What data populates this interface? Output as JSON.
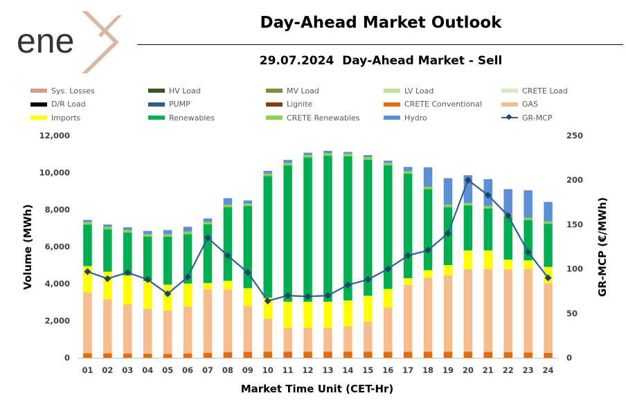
{
  "logo": {
    "text": "ene",
    "accent_color": "#d9b8a4",
    "text_color": "#333333"
  },
  "header": {
    "title": "Day-Ahead Market Outlook",
    "subtitle": "29.07.2024  Day-Ahead Market - Sell"
  },
  "legend": [
    {
      "label": "Sys. Losses",
      "color": "#d9998f",
      "kind": "bar"
    },
    {
      "label": "HV Load",
      "color": "#375623",
      "kind": "bar"
    },
    {
      "label": "MV Load",
      "color": "#76923c",
      "kind": "bar"
    },
    {
      "label": "LV Load",
      "color": "#c4df9b",
      "kind": "bar"
    },
    {
      "label": "CRETE Load",
      "color": "#d8e9c6",
      "kind": "bar"
    },
    {
      "label": "D/R Load",
      "color": "#000000",
      "kind": "bar"
    },
    {
      "label": "PUMP",
      "color": "#2f5d8a",
      "kind": "bar"
    },
    {
      "label": "Lignite",
      "color": "#843c0c",
      "kind": "bar"
    },
    {
      "label": "CRETE Conventional",
      "color": "#e46c0a",
      "kind": "bar"
    },
    {
      "label": "GAS",
      "color": "#f8bd8f",
      "kind": "bar"
    },
    {
      "label": "Imports",
      "color": "#ffff00",
      "kind": "bar"
    },
    {
      "label": "Renewables",
      "color": "#00b050",
      "kind": "bar"
    },
    {
      "label": "CRETE Renewables",
      "color": "#92d050",
      "kind": "bar"
    },
    {
      "label": "Hydro",
      "color": "#5b8fd6",
      "kind": "bar"
    },
    {
      "label": "GR-MCP",
      "color": "#2e5f94",
      "kind": "line"
    }
  ],
  "chart_data": {
    "type": "bar",
    "stacked": true,
    "title": "29.07.2024  Day-Ahead Market - Sell",
    "xlabel": "Market Time Unit (CET-Hr)",
    "ylabel": "Volume (MWh)",
    "y2label": "GR-MCP (€/MWh)",
    "ylim": [
      0,
      12000
    ],
    "y2lim": [
      0,
      250
    ],
    "yticks": [
      0,
      2000,
      4000,
      6000,
      8000,
      10000,
      12000
    ],
    "ytick_labels": [
      "0",
      "2,000",
      "4,000",
      "6,000",
      "8,000",
      "10,000",
      "12,000"
    ],
    "y2ticks": [
      0,
      50,
      100,
      150,
      200,
      250
    ],
    "y2tick_labels": [
      "0",
      "50",
      "100",
      "150",
      "200",
      "250"
    ],
    "categories": [
      "01",
      "02",
      "03",
      "04",
      "05",
      "06",
      "07",
      "08",
      "09",
      "10",
      "11",
      "12",
      "13",
      "14",
      "15",
      "16",
      "17",
      "18",
      "19",
      "20",
      "21",
      "22",
      "23",
      "24"
    ],
    "series": [
      {
        "name": "CRETE Conventional",
        "color": "#e46c0a",
        "values": [
          250,
          240,
          230,
          220,
          210,
          230,
          260,
          300,
          320,
          330,
          330,
          330,
          330,
          330,
          330,
          320,
          320,
          330,
          330,
          330,
          320,
          300,
          280,
          260
        ]
      },
      {
        "name": "GAS",
        "color": "#f8bd8f",
        "values": [
          3280,
          2920,
          2650,
          2430,
          2340,
          2550,
          3440,
          3380,
          2480,
          1780,
          1290,
          1290,
          1290,
          1370,
          1620,
          2400,
          3630,
          4000,
          4130,
          4470,
          4480,
          4480,
          4530,
          3770
        ]
      },
      {
        "name": "Imports",
        "color": "#ffff00",
        "values": [
          1420,
          1490,
          1570,
          1500,
          1400,
          1230,
          340,
          480,
          960,
          1140,
          1410,
          1410,
          1410,
          1400,
          1400,
          1000,
          350,
          400,
          550,
          1000,
          1000,
          520,
          450,
          880
        ]
      },
      {
        "name": "Renewables",
        "color": "#00b050",
        "values": [
          2250,
          2290,
          2320,
          2400,
          2590,
          2670,
          3170,
          3980,
          4440,
          6570,
          7360,
          7790,
          7890,
          7790,
          7350,
          6680,
          5650,
          4380,
          3130,
          2430,
          2270,
          2330,
          2180,
          2330
        ]
      },
      {
        "name": "CRETE Renewables",
        "color": "#92d050",
        "values": [
          130,
          130,
          130,
          130,
          130,
          130,
          130,
          130,
          130,
          130,
          130,
          130,
          130,
          130,
          130,
          130,
          130,
          130,
          130,
          130,
          130,
          130,
          130,
          130
        ]
      },
      {
        "name": "Hydro",
        "color": "#5b8fd6",
        "values": [
          120,
          130,
          150,
          170,
          230,
          270,
          190,
          350,
          170,
          150,
          170,
          130,
          130,
          100,
          120,
          120,
          230,
          1050,
          1430,
          1500,
          1450,
          1350,
          1480,
          1050
        ]
      }
    ],
    "line": {
      "name": "GR-MCP",
      "color": "#2e5f94",
      "marker_color": "#22416b",
      "axis": "right",
      "values": [
        97,
        89,
        96,
        88,
        72,
        91,
        135,
        115,
        96,
        64,
        70,
        69,
        70,
        82,
        88,
        100,
        115,
        121,
        140,
        200,
        183,
        160,
        119,
        90
      ]
    },
    "grid": false,
    "legend_position": "top"
  }
}
